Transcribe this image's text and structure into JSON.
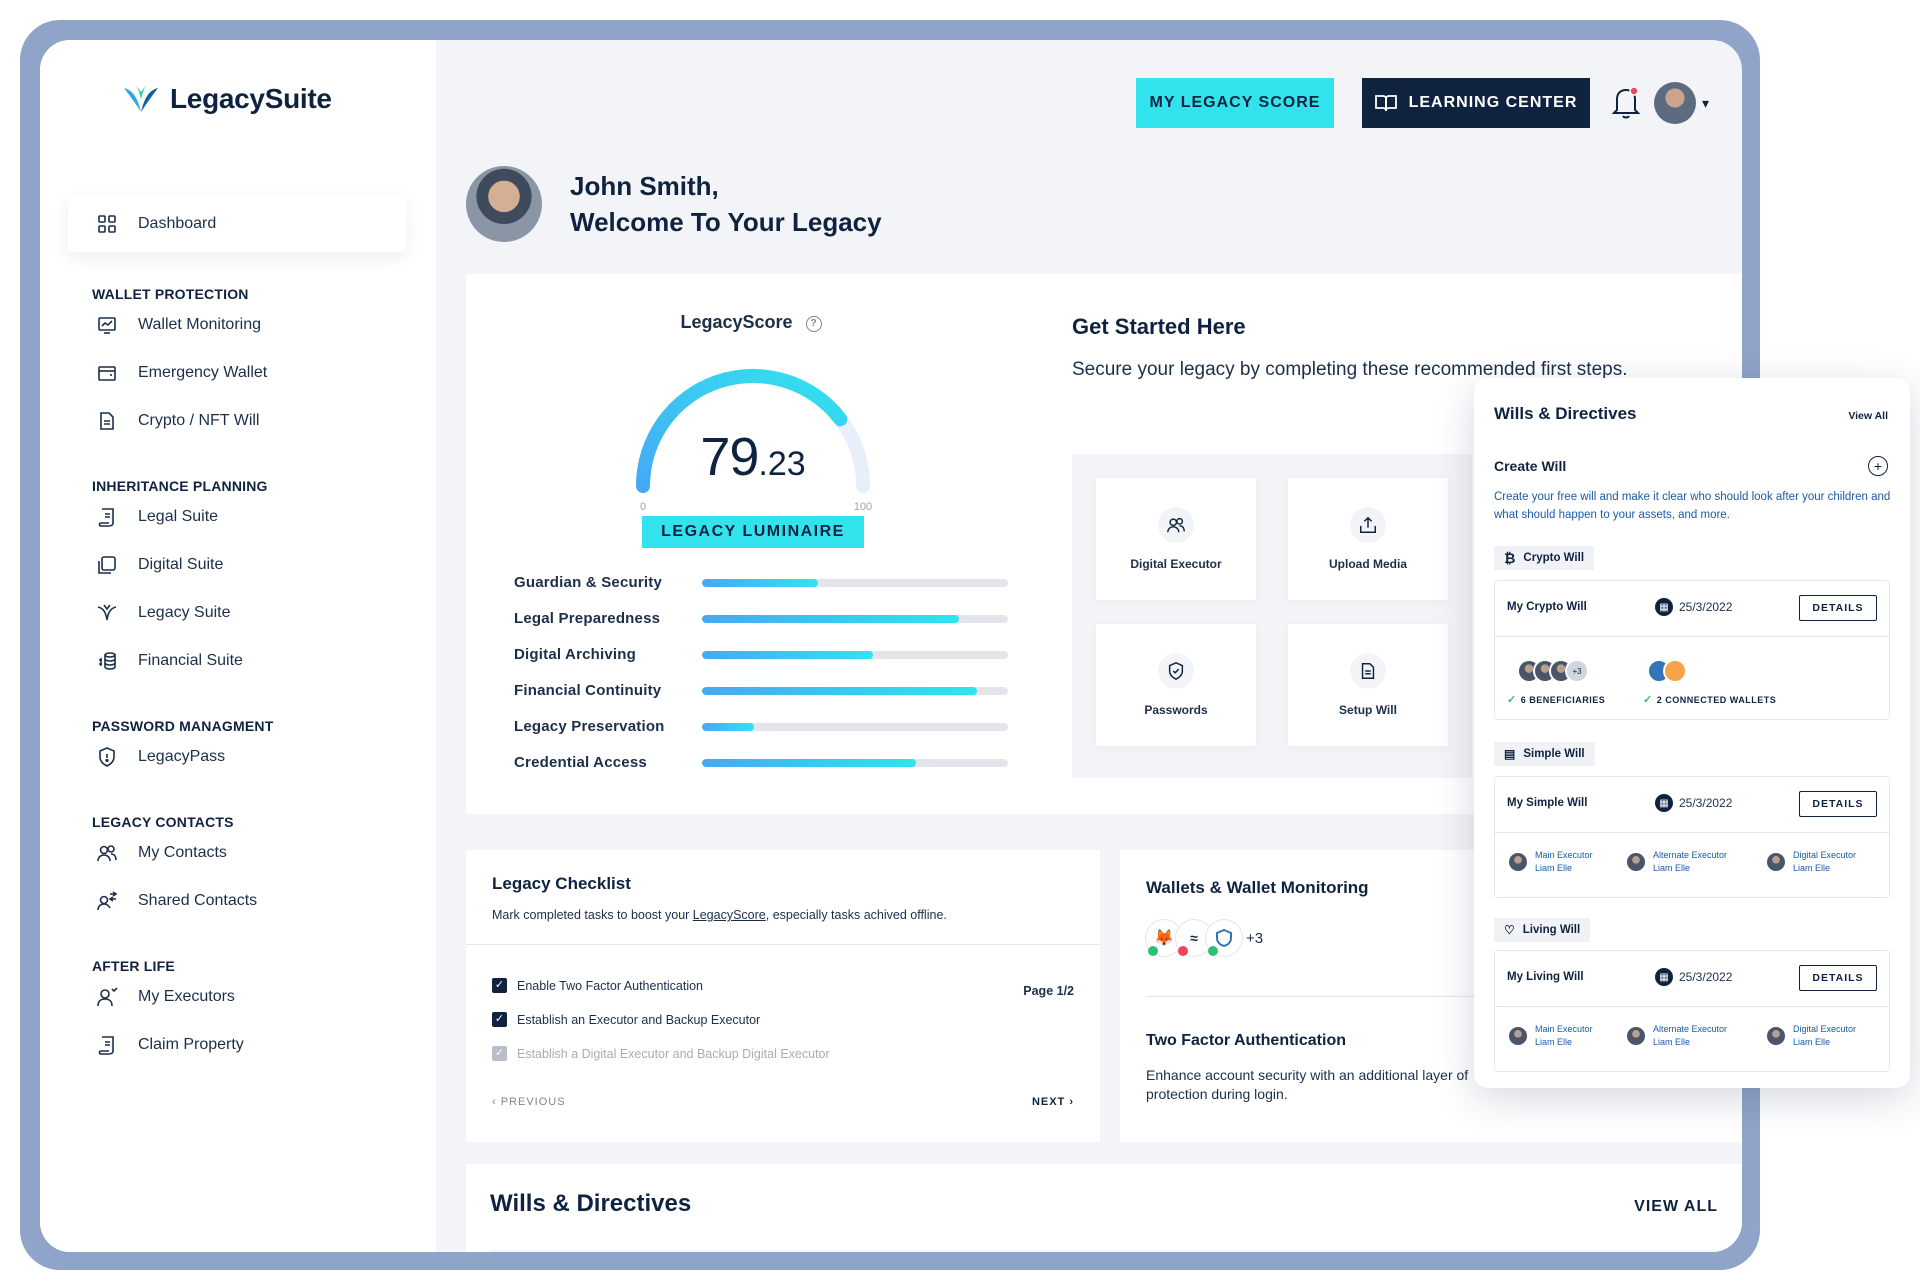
{
  "brand": {
    "name": "LegacySuite"
  },
  "sidebar": {
    "dashboard": "Dashboard",
    "groups": [
      {
        "title": "WALLET PROTECTION",
        "items": [
          "Wallet Monitoring",
          "Emergency Wallet",
          "Crypto / NFT Will"
        ]
      },
      {
        "title": "INHERITANCE PLANNING",
        "items": [
          "Legal Suite",
          "Digital Suite",
          "Legacy Suite",
          "Financial Suite"
        ]
      },
      {
        "title": "PASSWORD MANAGMENT",
        "items": [
          "LegacyPass"
        ]
      },
      {
        "title": "LEGACY CONTACTS",
        "items": [
          "My Contacts",
          "Shared Contacts"
        ]
      },
      {
        "title": "AFTER LIFE",
        "items": [
          "My Executors",
          "Claim Property"
        ]
      }
    ]
  },
  "header": {
    "score_button": "MY LEGACY SCORE",
    "learning_button": "LEARNING CENTER"
  },
  "welcome": {
    "line1": "John Smith,",
    "line2": "Welcome To Your Legacy"
  },
  "legacy_score": {
    "title": "LegacyScore",
    "help_icon": "?",
    "value_int": "79",
    "value_dec": ".23",
    "value": 79.23,
    "min_label": "0",
    "max_label": "100",
    "level": "LEGACY LUMINAIRE",
    "bars": [
      {
        "label": "Guardian & Security",
        "value": 0.38
      },
      {
        "label": "Legal Preparedness",
        "value": 0.84
      },
      {
        "label": "Digital Archiving",
        "value": 0.56
      },
      {
        "label": "Financial Continuity",
        "value": 0.9
      },
      {
        "label": "Legacy Preservation",
        "value": 0.17
      },
      {
        "label": "Credential Access",
        "value": 0.7
      }
    ]
  },
  "get_started": {
    "title": "Get Started Here",
    "subtitle": "Secure your legacy by completing these recommended first steps.",
    "tiles": [
      "Digital Executor",
      "Upload Media",
      "Passwords",
      "Setup Will"
    ]
  },
  "checklist": {
    "title": "Legacy Checklist",
    "subtitle_before": "Mark completed tasks to boost your ",
    "subtitle_link": "LegacyScore",
    "subtitle_after": ", especially tasks achived offline.",
    "page": "Page 1/2",
    "items": [
      "Enable Two Factor Authentication",
      "Establish an Executor and Backup Executor",
      "Establish a Digital Executor and Backup Digital Executor"
    ],
    "prev": "‹ PREVIOUS",
    "next": "NEXT ›"
  },
  "wallets": {
    "title": "Wallets & Wallet Monitoring",
    "more": "+3",
    "tfa_title": "Two Factor Authentication",
    "tfa_sub": "Enhance account security with an additional layer of protection during login."
  },
  "wills_bottom": {
    "title": "Wills & Directives",
    "view_all": "VIEW ALL"
  },
  "panel": {
    "title": "Wills & Directives",
    "view_all": "View All",
    "create_title": "Create Will",
    "create_desc": "Create your free will and make it clear who should look after your children and what should happen to your assets, and more.",
    "crypto_chip": "Crypto Will",
    "crypto_name": "My Crypto Will",
    "crypto_date": "25/3/2022",
    "details": "DETAILS",
    "av_more": "+3",
    "beneficiaries": "6 BENEFICIARIES",
    "wallets": "2 CONNECTED WALLETS",
    "simple_chip": "Simple Will",
    "simple_name": "My Simple Will",
    "simple_date": "25/3/2022",
    "living_chip": "Living Will",
    "living_name": "My Living Will",
    "living_date": "25/3/2022",
    "executors": [
      {
        "role": "Main Executor",
        "name": "Liam Elle"
      },
      {
        "role": "Alternate Executor",
        "name": "Liam Elle"
      },
      {
        "role": "Digital Executor",
        "name": "Liam Elle"
      }
    ]
  },
  "colors": {
    "accent": "#32e3ee",
    "navy": "#0f2340",
    "frame": "#8fa4c8"
  }
}
